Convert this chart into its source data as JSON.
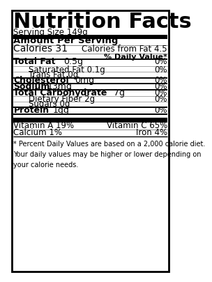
{
  "title": "Nutrition Facts",
  "serving_size": "Serving Size 149g",
  "amount_per_serving": "Amount Per Serving",
  "calories": "Calories 31",
  "calories_from_fat": "Calories from Fat 4.5",
  "daily_value_header": "% Daily Value*",
  "rows": [
    {
      "label": "Total Fat",
      "amount": "0.5g",
      "dv": "0%",
      "bold": true,
      "indent": 0
    },
    {
      "label": "Saturated Fat",
      "amount": "0.1g",
      "dv": "0%",
      "bold": false,
      "indent": 1
    },
    {
      "label": "Trans Fat",
      "amount": "0g",
      "dv": "",
      "bold": false,
      "indent": 1
    },
    {
      "label": "Cholesterol",
      "amount": "0mg",
      "dv": "0%",
      "bold": true,
      "indent": 0
    },
    {
      "label": "Sodium",
      "amount": "13mg",
      "dv": "0%",
      "bold": true,
      "indent": 0
    },
    {
      "label": "Total Carbohydrate",
      "amount": "7g",
      "dv": "0%",
      "bold": true,
      "indent": 0
    },
    {
      "label": "Dietary Fiber",
      "amount": "2g",
      "dv": "0%",
      "bold": false,
      "indent": 1
    },
    {
      "label": "Sugars",
      "amount": "0g",
      "dv": "",
      "bold": false,
      "indent": 1
    },
    {
      "label": "Protein",
      "amount": "1gg",
      "dv": "0%",
      "bold": true,
      "indent": 0
    }
  ],
  "vitamins": [
    {
      "left": "Vitamin A 19%",
      "right": "Vitamin C 65%"
    },
    {
      "left": "Calcium 1%",
      "right": "Iron 4%"
    }
  ],
  "footnote": "* Percent Daily Values are based on a 2,000 calorie diet.\nYour daily values may be higher or lower depending on\nyour calorie needs.",
  "bg_color": "#ffffff",
  "text_color": "#000000",
  "border_color": "#000000",
  "thick_bar_color": "#000000",
  "thin_line_color": "#999999"
}
